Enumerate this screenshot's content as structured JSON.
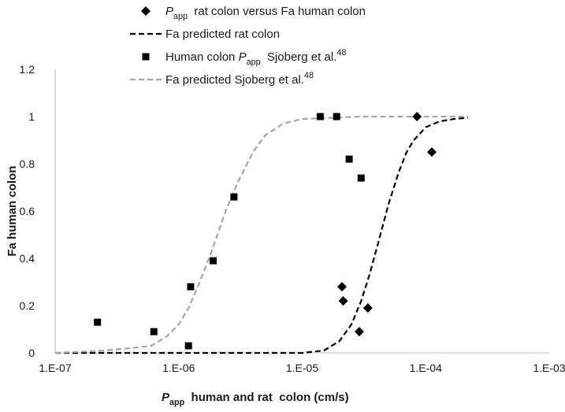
{
  "chart_data": {
    "type": "scatter",
    "xscale": "log",
    "xlim": [
      "1.E-07",
      "1.E-03"
    ],
    "ylim": [
      0,
      1.2
    ],
    "xticks": [
      {
        "label": "1.E-07",
        "value": 1e-07
      },
      {
        "label": "1.E-06",
        "value": 1e-06
      },
      {
        "label": "1.E-05",
        "value": 1e-05
      },
      {
        "label": "1.E-04",
        "value": 0.0001
      },
      {
        "label": "1.E-03",
        "value": 0.001
      }
    ],
    "yticks": [
      {
        "label": "0",
        "value": 0
      },
      {
        "label": "0.2",
        "value": 0.2
      },
      {
        "label": "0.4",
        "value": 0.4
      },
      {
        "label": "0.6",
        "value": 0.6
      },
      {
        "label": "0.8",
        "value": 0.8
      },
      {
        "label": "1",
        "value": 1
      },
      {
        "label": "1.2",
        "value": 1.2
      }
    ],
    "ylabel": "Fa human colon",
    "xlabel": {
      "italic": "P",
      "sub": "app",
      "rest": "  human and rat  colon (cm/s)"
    },
    "grid": false,
    "legend_position": "top",
    "series": [
      {
        "kind": "scatter",
        "marker": "diamond",
        "color": "#000000",
        "legend": {
          "italic": "P",
          "sub": "app",
          "rest": "  rat colon versus Fa human colon"
        },
        "points": [
          {
            "x": 2.1e-05,
            "y": 0.28
          },
          {
            "x": 2.15e-05,
            "y": 0.22
          },
          {
            "x": 2.9e-05,
            "y": 0.09
          },
          {
            "x": 3.4e-05,
            "y": 0.19
          },
          {
            "x": 8.5e-05,
            "y": 1.0
          },
          {
            "x": 0.000112,
            "y": 0.85
          }
        ]
      },
      {
        "kind": "line",
        "style": "dashed",
        "color": "#000000",
        "legend": {
          "rest": "Fa predicted rat colon"
        },
        "points": [
          {
            "x": 1e-07,
            "y": 0.0
          },
          {
            "x": 1e-06,
            "y": 0.0
          },
          {
            "x": 1e-05,
            "y": 0.0
          },
          {
            "x": 1.5e-05,
            "y": 0.01
          },
          {
            "x": 2e-05,
            "y": 0.05
          },
          {
            "x": 2.5e-05,
            "y": 0.12
          },
          {
            "x": 3e-05,
            "y": 0.22
          },
          {
            "x": 3.5e-05,
            "y": 0.33
          },
          {
            "x": 4e-05,
            "y": 0.44
          },
          {
            "x": 4.5e-05,
            "y": 0.54
          },
          {
            "x": 5e-05,
            "y": 0.63
          },
          {
            "x": 6e-05,
            "y": 0.76
          },
          {
            "x": 7e-05,
            "y": 0.85
          },
          {
            "x": 8e-05,
            "y": 0.9
          },
          {
            "x": 0.0001,
            "y": 0.955
          },
          {
            "x": 0.00013,
            "y": 0.98
          },
          {
            "x": 0.00017,
            "y": 0.99
          },
          {
            "x": 0.00022,
            "y": 0.995
          }
        ]
      },
      {
        "kind": "scatter",
        "marker": "square",
        "color": "#000000",
        "legend": {
          "rest": "Human colon ",
          "italic": "P",
          "sub": "app",
          "rest2": "  Sjoberg et al.",
          "sup": "48"
        },
        "points": [
          {
            "x": 2.2e-07,
            "y": 0.13
          },
          {
            "x": 6.3e-07,
            "y": 0.09
          },
          {
            "x": 1.2e-06,
            "y": 0.03
          },
          {
            "x": 1.25e-06,
            "y": 0.28
          },
          {
            "x": 1.9e-06,
            "y": 0.39
          },
          {
            "x": 2.8e-06,
            "y": 0.66
          },
          {
            "x": 1.4e-05,
            "y": 1.0
          },
          {
            "x": 1.9e-05,
            "y": 1.0
          },
          {
            "x": 2.4e-05,
            "y": 0.82
          },
          {
            "x": 3e-05,
            "y": 0.74
          }
        ]
      },
      {
        "kind": "line",
        "style": "dashed",
        "color": "#a6a6a6",
        "legend": {
          "rest": "Fa predicted Sjoberg et al.",
          "sup": "48"
        },
        "points": [
          {
            "x": 1e-07,
            "y": 0.0
          },
          {
            "x": 2.5e-07,
            "y": 0.01
          },
          {
            "x": 4e-07,
            "y": 0.02
          },
          {
            "x": 6e-07,
            "y": 0.03
          },
          {
            "x": 8e-07,
            "y": 0.07
          },
          {
            "x": 1e-06,
            "y": 0.12
          },
          {
            "x": 1.2e-06,
            "y": 0.19
          },
          {
            "x": 1.4e-06,
            "y": 0.27
          },
          {
            "x": 1.7e-06,
            "y": 0.38
          },
          {
            "x": 2e-06,
            "y": 0.48
          },
          {
            "x": 2.4e-06,
            "y": 0.6
          },
          {
            "x": 3e-06,
            "y": 0.72
          },
          {
            "x": 4e-06,
            "y": 0.85
          },
          {
            "x": 5e-06,
            "y": 0.92
          },
          {
            "x": 7e-06,
            "y": 0.97
          },
          {
            "x": 1e-05,
            "y": 0.99
          },
          {
            "x": 3e-05,
            "y": 1.0
          },
          {
            "x": 0.0001,
            "y": 1.0
          },
          {
            "x": 0.00022,
            "y": 1.0
          }
        ]
      }
    ]
  }
}
